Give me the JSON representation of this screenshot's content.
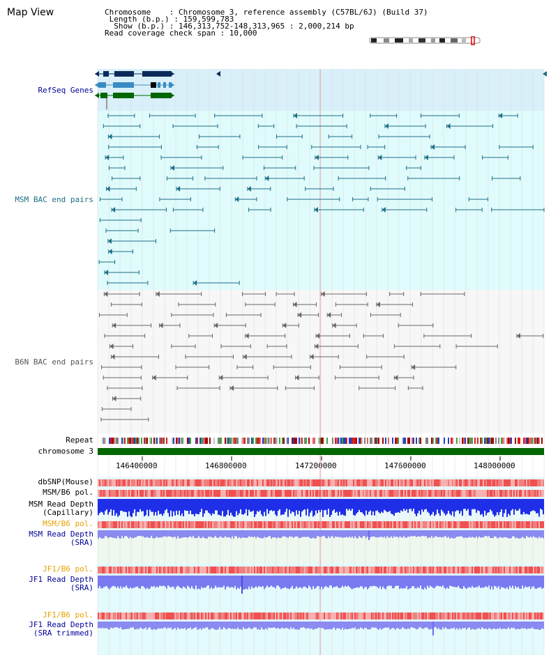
{
  "header": {
    "title": "Map View",
    "info_lines": [
      "Chromosome    : Chromosome 3, reference assembly (C57BL/6J) (Build 37)",
      " Length (b.p.) : 159,599,783",
      "  Show (b.p.) : 146,313,752-148,313,965 : 2,000,214 bp",
      "Read coverage check span : 10,000"
    ]
  },
  "tracks": {
    "refseq": {
      "label": "RefSeq Genes",
      "color": "#000099"
    },
    "msm_bac": {
      "label": "MSM BAC end pairs",
      "color": "#1d6e87"
    },
    "b6n_bac": {
      "label": "B6N BAC end pairs",
      "color": "#555555"
    },
    "repeat": {
      "label": "Repeat"
    },
    "chromosome": {
      "label": "chromosome 3"
    },
    "dbsnp": {
      "label": "dbSNP(Mouse)"
    },
    "msm_b6_pol_1": {
      "label": "MSM/B6 pol."
    },
    "msm_depth_cap": {
      "label_line1": "MSM Read Depth",
      "label_line2": "(Capillary)"
    },
    "msm_b6_pol_2": {
      "label": "MSM/B6 pol.",
      "color": "#e8a000"
    },
    "msm_depth_sra": {
      "label_line1": "MSM Read Depth",
      "label_line2": "(SRA)",
      "color": "#000099"
    },
    "jf1_b6_pol_1": {
      "label": "JF1/B6 pol.",
      "color": "#e8a000"
    },
    "jf1_depth_sra": {
      "label_line1": "JF1 Read Depth",
      "label_line2": "(SRA)",
      "color": "#000099"
    },
    "jf1_b6_pol_2": {
      "label": "JF1/B6 pol.",
      "color": "#e8a000"
    },
    "jf1_depth_trim": {
      "label_line1": "JF1 Read Depth",
      "label_line2": "(SRA trimmed)",
      "color": "#000099"
    }
  },
  "axis": {
    "ticks": [
      "146400000",
      "146800000",
      "147200000",
      "147600000",
      "148000000"
    ]
  },
  "colors": {
    "refseq_bg": "#d9f0fa",
    "msm_bg": "#e0fbfb",
    "b6n_bg": "#f7f7f7",
    "chromosome_bar": "#006600",
    "snp_red": "#f06060",
    "depth_blue": "#1f2fe8",
    "depth_lavender": "#8a8af0"
  }
}
